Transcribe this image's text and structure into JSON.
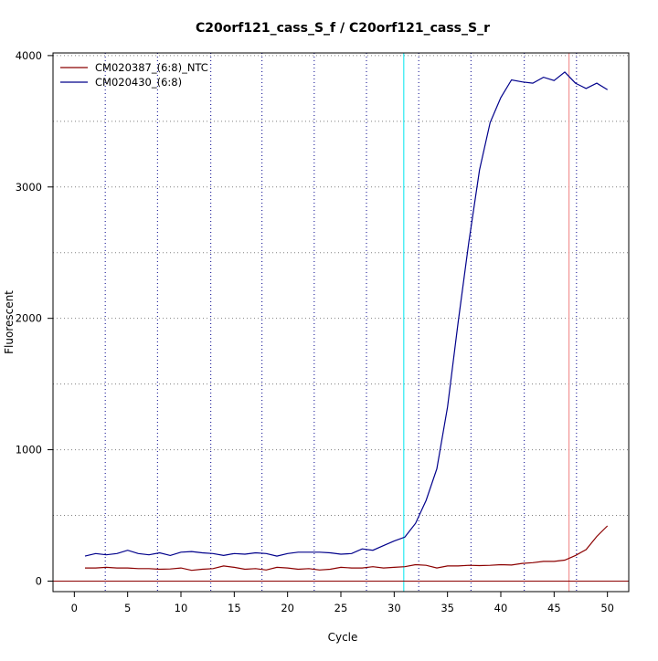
{
  "chart_data": {
    "type": "line",
    "title": "C20orf121_cass_S_f / C20orf121_cass_S_r",
    "xlabel": "Cycle",
    "ylabel": "Fluorescent",
    "xlim": [
      -2,
      52
    ],
    "ylim": [
      -80,
      4020
    ],
    "x_ticks": [
      0,
      5,
      10,
      15,
      20,
      25,
      30,
      35,
      40,
      45,
      50
    ],
    "y_ticks": [
      0,
      1000,
      2000,
      3000,
      4000
    ],
    "legend_position": "top-left",
    "series": [
      {
        "name": "CM020387_(6:8)_NTC",
        "color": "#8b0000",
        "x": [
          1,
          2,
          3,
          4,
          5,
          6,
          7,
          8,
          9,
          10,
          11,
          12,
          13,
          14,
          15,
          16,
          17,
          18,
          19,
          20,
          21,
          22,
          23,
          24,
          25,
          26,
          27,
          28,
          29,
          30,
          31,
          32,
          33,
          34,
          35,
          36,
          37,
          38,
          39,
          40,
          41,
          42,
          43,
          44,
          45,
          46,
          47,
          48,
          49,
          50
        ],
        "values": [
          100,
          100,
          105,
          100,
          100,
          95,
          95,
          90,
          92,
          100,
          82,
          90,
          95,
          115,
          105,
          90,
          95,
          85,
          105,
          100,
          90,
          95,
          85,
          90,
          105,
          100,
          100,
          110,
          100,
          105,
          110,
          125,
          120,
          100,
          115,
          115,
          120,
          118,
          120,
          125,
          122,
          135,
          140,
          150,
          150,
          160,
          195,
          240,
          340,
          420
        ]
      },
      {
        "name": "CM020430_(6:8)",
        "color": "#00008b",
        "x": [
          1,
          2,
          3,
          4,
          5,
          6,
          7,
          8,
          9,
          10,
          11,
          12,
          13,
          14,
          15,
          16,
          17,
          18,
          19,
          20,
          21,
          22,
          23,
          24,
          25,
          26,
          27,
          28,
          29,
          30,
          31,
          32,
          33,
          34,
          35,
          36,
          37,
          38,
          39,
          40,
          41,
          42,
          43,
          44,
          45,
          46,
          47,
          48,
          49,
          50
        ],
        "values": [
          190,
          210,
          200,
          210,
          235,
          210,
          200,
          215,
          195,
          220,
          225,
          215,
          210,
          195,
          210,
          205,
          215,
          210,
          190,
          210,
          220,
          220,
          220,
          215,
          205,
          210,
          245,
          235,
          270,
          305,
          335,
          440,
          615,
          855,
          1325,
          1970,
          2580,
          3130,
          3490,
          3680,
          3815,
          3800,
          3790,
          3835,
          3810,
          3875,
          3790,
          3750,
          3790,
          3740
        ]
      }
    ],
    "vertical_lines": [
      {
        "x": 2.9,
        "color": "#00008b",
        "style": "dotted"
      },
      {
        "x": 7.8,
        "color": "#00008b",
        "style": "dotted"
      },
      {
        "x": 12.8,
        "color": "#00008b",
        "style": "dotted"
      },
      {
        "x": 17.6,
        "color": "#00008b",
        "style": "dotted"
      },
      {
        "x": 22.5,
        "color": "#00008b",
        "style": "dotted"
      },
      {
        "x": 27.4,
        "color": "#00008b",
        "style": "dotted"
      },
      {
        "x": 30.9,
        "color": "#00e5ee",
        "style": "solid"
      },
      {
        "x": 32.3,
        "color": "#00008b",
        "style": "dotted"
      },
      {
        "x": 37.2,
        "color": "#00008b",
        "style": "dotted"
      },
      {
        "x": 42.2,
        "color": "#00008b",
        "style": "dotted"
      },
      {
        "x": 46.4,
        "color": "#f08080",
        "style": "solid"
      },
      {
        "x": 47.1,
        "color": "#00008b",
        "style": "dotted"
      }
    ],
    "baseline": {
      "y": 0,
      "color": "#8b0000"
    },
    "grid": {
      "horizontal": true,
      "color": "#808080",
      "style": "dotted"
    }
  }
}
